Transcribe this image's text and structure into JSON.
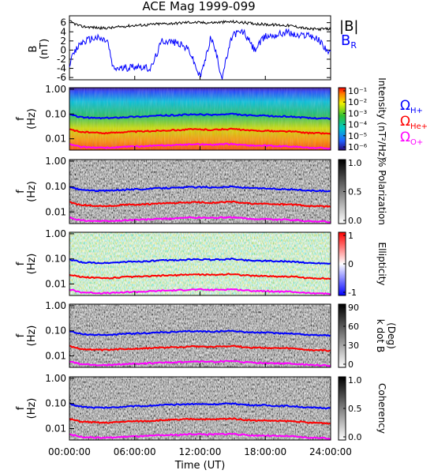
{
  "title": "ACE Mag 1999-099",
  "time_axis": {
    "label": "Time (UT)",
    "ticks": [
      "00:00:00",
      "06:00:00",
      "12:00:00",
      "18:00:00",
      "24:00:00"
    ],
    "range_hours": [
      0,
      24
    ]
  },
  "colors": {
    "B_total": "#000000",
    "B_R": "#0000ff",
    "cH": "#0000ff",
    "cHe": "#ff0000",
    "cO": "#ff00ff"
  },
  "legend_top": {
    "B_total": "|B|",
    "B_R": "B",
    "B_R_sub": "R"
  },
  "legend_gyro": [
    {
      "sym": "Ω",
      "sub": "H+",
      "color": "#0000ff"
    },
    {
      "sym": "Ω",
      "sub": "He+",
      "color": "#ff0000"
    },
    {
      "sym": "Ω",
      "sub": "O+",
      "color": "#ff00ff"
    }
  ],
  "freq_axis": {
    "label_top": "f",
    "label_bottom": "(Hz)",
    "ticks": [
      "1.00",
      "0.10",
      "0.01"
    ]
  },
  "chart_data": [
    {
      "type": "line",
      "panel": "B",
      "ylabel_top": "B",
      "ylabel_bottom": "(nT)",
      "ylim": [
        -6.5,
        7.5
      ],
      "yticks": [
        "6",
        "4",
        "2",
        "0",
        "-2",
        "-4",
        "-6"
      ],
      "series": [
        {
          "name": "|B|",
          "x_hours": [
            0,
            1,
            2,
            3,
            4,
            5,
            6,
            7,
            8,
            9,
            10,
            11,
            12,
            13,
            14,
            15,
            16,
            17,
            18,
            19,
            20,
            21,
            22,
            23,
            24
          ],
          "values": [
            6.3,
            5.2,
            5.0,
            4.8,
            4.9,
            5.2,
            5.4,
            5.5,
            5.7,
            5.8,
            5.9,
            6.1,
            6.0,
            6.0,
            6.1,
            6.2,
            6.0,
            5.8,
            5.6,
            5.5,
            5.4,
            5.1,
            4.6,
            4.6,
            4.6
          ]
        },
        {
          "name": "B_R",
          "x_hours": [
            0,
            0.5,
            1,
            1.5,
            2,
            2.5,
            3,
            3.5,
            4,
            5,
            6,
            6.5,
            7,
            7.5,
            8,
            8.5,
            9,
            10,
            11,
            12,
            12.5,
            13,
            13.5,
            14,
            15,
            16,
            17,
            18,
            19,
            20,
            21,
            22,
            23,
            24
          ],
          "values": [
            -3,
            -0.5,
            1.5,
            2,
            2.5,
            2.7,
            2.3,
            2,
            -4,
            -4,
            -3.5,
            -3.5,
            -4,
            -4,
            -1,
            2,
            2,
            1.5,
            0,
            -6,
            -2,
            3,
            -1,
            -6,
            3.5,
            4,
            0,
            3,
            3.3,
            4,
            3,
            3.5,
            2,
            -1
          ]
        }
      ]
    },
    {
      "type": "heatmap",
      "panel": "Intensity",
      "colorbar_label": "Intensity (nT²/Hz)",
      "colorbar_ticks": [
        "10⁻¹",
        "10⁻²",
        "10⁻³",
        "10⁻⁴",
        "10⁻⁵",
        "10⁻⁶"
      ]
    },
    {
      "type": "heatmap",
      "panel": "Polarization",
      "colorbar_label": "% Polarization",
      "colorbar_ticks": [
        "1.0",
        "0.5",
        "0.0"
      ]
    },
    {
      "type": "heatmap",
      "panel": "Ellipticity",
      "colorbar_label": "Ellipticity",
      "colorbar_ticks": [
        "1",
        "0",
        "-1"
      ]
    },
    {
      "type": "heatmap",
      "panel": "k dot B",
      "colorbar_label_top": "k dot B",
      "colorbar_label_bottom": "(Deg)",
      "colorbar_ticks": [
        "90",
        "60",
        "30",
        "0"
      ]
    },
    {
      "type": "heatmap",
      "panel": "Coherency",
      "colorbar_label": "Coherency",
      "colorbar_ticks": [
        "1.0",
        "0.5",
        "0.0"
      ]
    }
  ],
  "gyro_lines_hz": {
    "x_hours": [
      0,
      1,
      2,
      3,
      4,
      5,
      6,
      7,
      8,
      9,
      10,
      11,
      12,
      13,
      14,
      15,
      16,
      17,
      18,
      19,
      20,
      21,
      22,
      23,
      24
    ],
    "H+": [
      0.095,
      0.075,
      0.07,
      0.068,
      0.07,
      0.075,
      0.078,
      0.08,
      0.085,
      0.088,
      0.09,
      0.095,
      0.095,
      0.093,
      0.095,
      0.1,
      0.09,
      0.085,
      0.085,
      0.08,
      0.08,
      0.075,
      0.068,
      0.068,
      0.065
    ],
    "He+": [
      0.024,
      0.019,
      0.018,
      0.017,
      0.0175,
      0.019,
      0.0195,
      0.02,
      0.021,
      0.022,
      0.0225,
      0.024,
      0.024,
      0.023,
      0.024,
      0.025,
      0.0225,
      0.021,
      0.021,
      0.02,
      0.02,
      0.019,
      0.017,
      0.017,
      0.016
    ],
    "O+": [
      0.006,
      0.0047,
      0.0045,
      0.0043,
      0.0044,
      0.0047,
      0.0049,
      0.005,
      0.0053,
      0.0055,
      0.0056,
      0.006,
      0.006,
      0.0058,
      0.006,
      0.0062,
      0.0056,
      0.0053,
      0.0053,
      0.005,
      0.005,
      0.0047,
      0.0043,
      0.0043,
      0.004
    ]
  }
}
